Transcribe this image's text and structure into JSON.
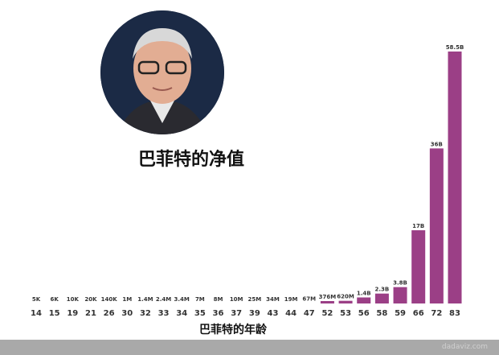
{
  "chart_data": {
    "type": "bar",
    "title": "巴菲特的净值",
    "xlabel": "巴菲特的年龄",
    "ylabel": "",
    "categories": [
      "14",
      "15",
      "19",
      "21",
      "26",
      "30",
      "32",
      "33",
      "34",
      "35",
      "36",
      "37",
      "39",
      "43",
      "44",
      "47",
      "52",
      "53",
      "56",
      "58",
      "59",
      "66",
      "72",
      "83"
    ],
    "values": [
      5e-06,
      6e-06,
      1e-05,
      2e-05,
      0.00014,
      0.001,
      0.0014,
      0.0024,
      0.0034,
      0.007,
      0.008,
      0.01,
      0.025,
      0.034,
      0.019,
      0.067,
      0.376,
      0.62,
      1.4,
      2.3,
      3.8,
      17,
      36,
      58.5
    ],
    "value_unit": "billion USD",
    "data_labels": [
      "5K",
      "6K",
      "10K",
      "20K",
      "140K",
      "1M",
      "1.4M",
      "2.4M",
      "3.4M",
      "7M",
      "8M",
      "10M",
      "25M",
      "34M",
      "19M",
      "67M",
      "376M",
      "620M",
      "1.4B",
      "2.3B",
      "3.8B",
      "17B",
      "36B",
      "58.5B"
    ],
    "ylim": [
      0,
      58.5
    ],
    "grid": false,
    "bar_color": "#9b3f86"
  },
  "watermark": "dadaviz.com"
}
